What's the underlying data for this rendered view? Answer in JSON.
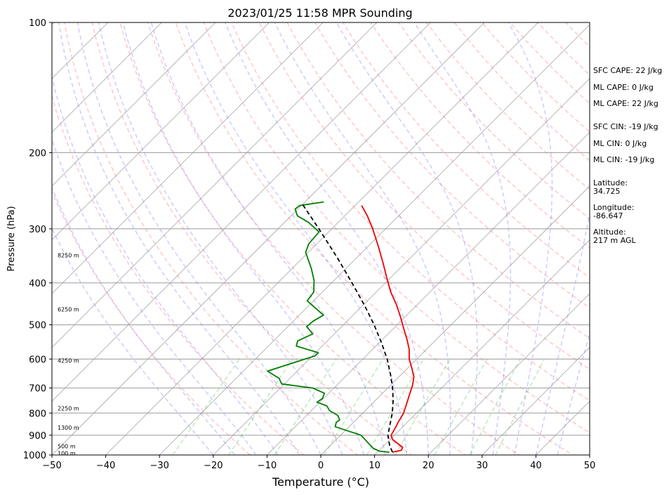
{
  "chart_data": {
    "type": "line",
    "subtype": "skew-t log-p sounding",
    "title": "2023/01/25 11:58 MPR Sounding",
    "xlabel": "Temperature (°C)",
    "ylabel": "Pressure (hPa)",
    "xlim": [
      -50,
      50
    ],
    "ylim": [
      1000,
      100
    ],
    "y_scale": "log",
    "skew": "45 degrees",
    "x_ticks": [
      -50,
      -40,
      -30,
      -20,
      -10,
      0,
      10,
      20,
      30,
      40,
      50
    ],
    "x_tick_labels": [
      "−50",
      "−40",
      "−30",
      "−20",
      "−10",
      "0",
      "10",
      "20",
      "30",
      "40",
      "50"
    ],
    "y_ticks": [
      1000,
      900,
      800,
      700,
      600,
      500,
      400,
      300,
      200,
      100
    ],
    "y_tick_labels": [
      "1000",
      "900",
      "800",
      "700",
      "600",
      "500",
      "400",
      "300",
      "200",
      "100"
    ],
    "grid": "horizontal isobars",
    "height_labels": [
      {
        "pressure": 990,
        "text": "100 m"
      },
      {
        "pressure": 955,
        "text": "500 m"
      },
      {
        "pressure": 865,
        "text": "1300 m"
      },
      {
        "pressure": 780,
        "text": "2250 m"
      },
      {
        "pressure": 605,
        "text": "4250 m"
      },
      {
        "pressure": 460,
        "text": "6250 m"
      },
      {
        "pressure": 345,
        "text": "8250 m"
      }
    ],
    "series": [
      {
        "key": "temperature",
        "color": "#ee0000",
        "style": "solid",
        "points": [
          {
            "p": 985,
            "t": 12.8
          },
          {
            "p": 975,
            "t": 14.1
          },
          {
            "p": 960,
            "t": 13.8
          },
          {
            "p": 940,
            "t": 12.1
          },
          {
            "p": 920,
            "t": 10.4
          },
          {
            "p": 900,
            "t": 9.4
          },
          {
            "p": 870,
            "t": 8.9
          },
          {
            "p": 840,
            "t": 8.3
          },
          {
            "p": 800,
            "t": 7.6
          },
          {
            "p": 760,
            "t": 6.4
          },
          {
            "p": 720,
            "t": 5.1
          },
          {
            "p": 690,
            "t": 4.1
          },
          {
            "p": 660,
            "t": 2.8
          },
          {
            "p": 630,
            "t": 0.8
          },
          {
            "p": 600,
            "t": -1.4
          },
          {
            "p": 570,
            "t": -3.2
          },
          {
            "p": 540,
            "t": -5.5
          },
          {
            "p": 510,
            "t": -8.1
          },
          {
            "p": 480,
            "t": -10.8
          },
          {
            "p": 450,
            "t": -13.8
          },
          {
            "p": 420,
            "t": -17.3
          },
          {
            "p": 390,
            "t": -20.6
          },
          {
            "p": 360,
            "t": -24.1
          },
          {
            "p": 330,
            "t": -28.0
          },
          {
            "p": 300,
            "t": -32.4
          },
          {
            "p": 280,
            "t": -35.8
          },
          {
            "p": 265,
            "t": -38.8
          }
        ]
      },
      {
        "key": "dewpoint",
        "color": "#007f00",
        "style": "solid",
        "points": [
          {
            "p": 985,
            "t": 12.2
          },
          {
            "p": 980,
            "t": 10.2
          },
          {
            "p": 965,
            "t": 8.5
          },
          {
            "p": 940,
            "t": 6.7
          },
          {
            "p": 900,
            "t": 3.8
          },
          {
            "p": 880,
            "t": 0.6
          },
          {
            "p": 860,
            "t": -2.6
          },
          {
            "p": 840,
            "t": -3.2
          },
          {
            "p": 830,
            "t": -3.0
          },
          {
            "p": 810,
            "t": -4.2
          },
          {
            "p": 790,
            "t": -6.6
          },
          {
            "p": 770,
            "t": -8.0
          },
          {
            "p": 755,
            "t": -10.5
          },
          {
            "p": 740,
            "t": -10.2
          },
          {
            "p": 720,
            "t": -10.8
          },
          {
            "p": 700,
            "t": -14.0
          },
          {
            "p": 685,
            "t": -20.5
          },
          {
            "p": 665,
            "t": -22.0
          },
          {
            "p": 640,
            "t": -25.5
          },
          {
            "p": 620,
            "t": -23.2
          },
          {
            "p": 590,
            "t": -19.5
          },
          {
            "p": 580,
            "t": -19.5
          },
          {
            "p": 560,
            "t": -24.8
          },
          {
            "p": 545,
            "t": -25.5
          },
          {
            "p": 525,
            "t": -24.0
          },
          {
            "p": 505,
            "t": -26.5
          },
          {
            "p": 490,
            "t": -26.3
          },
          {
            "p": 475,
            "t": -25.5
          },
          {
            "p": 440,
            "t": -31.2
          },
          {
            "p": 420,
            "t": -31.6
          },
          {
            "p": 395,
            "t": -33.7
          },
          {
            "p": 370,
            "t": -36.5
          },
          {
            "p": 340,
            "t": -40.5
          },
          {
            "p": 325,
            "t": -41.5
          },
          {
            "p": 305,
            "t": -41.8
          },
          {
            "p": 290,
            "t": -45.5
          },
          {
            "p": 280,
            "t": -48.8
          },
          {
            "p": 270,
            "t": -50.5
          },
          {
            "p": 265,
            "t": -50.3
          },
          {
            "p": 260,
            "t": -46.5
          }
        ]
      },
      {
        "key": "parcel-profile",
        "color": "#000000",
        "style": "dashed",
        "points": [
          {
            "p": 985,
            "t": 12.8
          },
          {
            "p": 950,
            "t": 11.0
          },
          {
            "p": 900,
            "t": 8.8
          },
          {
            "p": 850,
            "t": 7.2
          },
          {
            "p": 800,
            "t": 5.5
          },
          {
            "p": 750,
            "t": 3.4
          },
          {
            "p": 700,
            "t": 0.9
          },
          {
            "p": 650,
            "t": -2.1
          },
          {
            "p": 600,
            "t": -5.5
          },
          {
            "p": 550,
            "t": -9.6
          },
          {
            "p": 500,
            "t": -14.3
          },
          {
            "p": 450,
            "t": -19.8
          },
          {
            "p": 400,
            "t": -26.2
          },
          {
            "p": 350,
            "t": -33.6
          },
          {
            "p": 300,
            "t": -42.4
          },
          {
            "p": 262,
            "t": -50.3
          }
        ]
      }
    ]
  },
  "side_panel": {
    "sfc_cape": "SFC CAPE: 22 J/kg",
    "ml_cape_1": "ML CAPE: 0 J/kg",
    "ml_cape_2": "ML CAPE: 22 J/kg",
    "sfc_cin": "SFC CIN: -19 J/kg",
    "ml_cin_1": "ML CIN: 0 J/kg",
    "ml_cin_2": "ML CIN: -19 J/kg",
    "latitude_label": "Latitude:",
    "latitude_value": "34.725",
    "longitude_label": "Longitude:",
    "longitude_value": "-86.647",
    "altitude_label": "Altitude:",
    "altitude_value": "217 m AGL"
  }
}
